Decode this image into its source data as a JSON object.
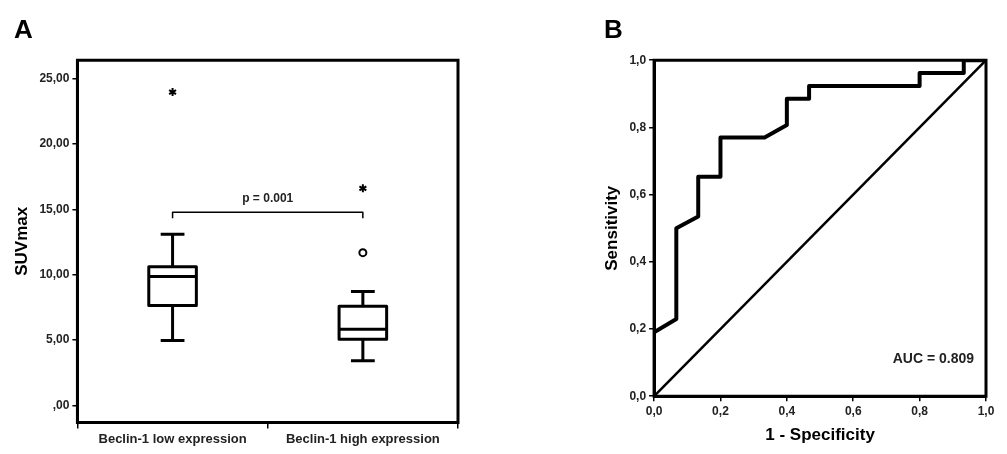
{
  "chart_data": [
    {
      "type": "box",
      "title": "A",
      "ylabel": "SUVmax",
      "categories": [
        "Beclin-1 low expression",
        "Beclin-1 high expression"
      ],
      "boxes": [
        {
          "low": 4.97,
          "q1": 7.64,
          "median": 9.86,
          "q3": 10.6,
          "high": 13.08,
          "outliers": [
            23.96
          ]
        },
        {
          "low": 3.41,
          "q1": 5.05,
          "median": 5.82,
          "q3": 7.58,
          "high": 8.71,
          "outliers": [
            11.68,
            16.6
          ]
        }
      ],
      "color": "#000000",
      "ylim": [
        -1.3,
        26.4
      ],
      "yticks": [
        {
          "value": 0,
          "label": ",00"
        },
        {
          "value": 5,
          "label": "5,00"
        },
        {
          "value": 10,
          "label": "10,00"
        },
        {
          "value": 15,
          "label": "15,00"
        },
        {
          "value": 20,
          "label": "20,00"
        },
        {
          "value": 25,
          "label": "25,00"
        }
      ],
      "annotations": [
        "p = 0.001"
      ],
      "grid": false
    },
    {
      "type": "line",
      "title": "B",
      "xlabel": "1 - Specificity",
      "ylabel": "Sensitivity",
      "marker": "none",
      "line_style": "solid",
      "grid": false,
      "series": [
        {
          "color": "#000000",
          "x": [
            0,
            0.067,
            0.067,
            0.133,
            0.133,
            0.2,
            0.2,
            0.333,
            0.4,
            0.4,
            0.467,
            0.467,
            0.8,
            0.8,
            0.933,
            0.933,
            1
          ],
          "values": [
            0.19,
            0.23,
            0.5,
            0.535,
            0.653,
            0.653,
            0.77,
            0.77,
            0.807,
            0.885,
            0.885,
            0.923,
            0.923,
            0.962,
            0.962,
            1,
            1
          ]
        },
        {
          "color": "#000000",
          "x": [
            0,
            1
          ],
          "values": [
            0,
            1
          ]
        }
      ],
      "xlim": [
        0,
        1
      ],
      "ylim": [
        0,
        1
      ],
      "xticks": [
        {
          "value": 0,
          "label": "0,0"
        },
        {
          "value": 0.2,
          "label": "0,2"
        },
        {
          "value": 0.4,
          "label": "0,4"
        },
        {
          "value": 0.6,
          "label": "0,6"
        },
        {
          "value": 0.8,
          "label": "0,8"
        },
        {
          "value": 1,
          "label": "1,0"
        }
      ],
      "yticks": [
        {
          "value": 0,
          "label": "0,0"
        },
        {
          "value": 0.2,
          "label": "0,2"
        },
        {
          "value": 0.4,
          "label": "0,4"
        },
        {
          "value": 0.6,
          "label": "0,6"
        },
        {
          "value": 0.8,
          "label": "0,8"
        },
        {
          "value": 1,
          "label": "1,0"
        }
      ],
      "annotations": [
        "AUC = 0.809"
      ]
    }
  ]
}
